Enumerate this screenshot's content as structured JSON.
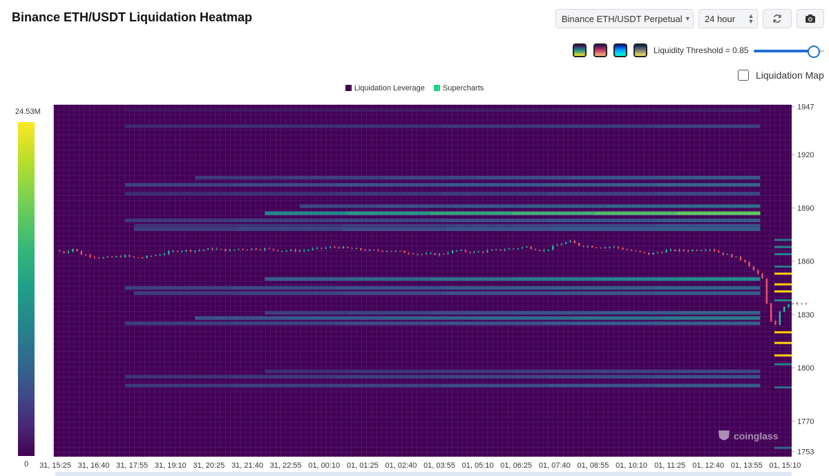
{
  "header": {
    "title": "Binance ETH/USDT Liquidation Heatmap",
    "pair_select": "Binance ETH/USDT Perpetual",
    "range_select": "24 hour",
    "refresh_icon": "refresh-icon",
    "camera_icon": "camera-icon"
  },
  "controls": {
    "palettes": [
      {
        "icon": "palette-viridis-icon",
        "from": "#440154",
        "mid": "#21918c",
        "to": "#fde725"
      },
      {
        "icon": "palette-magma-icon",
        "from": "#2c105c",
        "mid": "#c23a5f",
        "to": "#fcb97d"
      },
      {
        "icon": "palette-blue-icon",
        "from": "#0010a0",
        "mid": "#00a8ff",
        "to": "#00ffd0"
      },
      {
        "icon": "palette-cividis-icon",
        "from": "#00204c",
        "mid": "#7c7b78",
        "to": "#f2e35a"
      }
    ],
    "threshold_label": "Liquidity Threshold = 0.85",
    "threshold_value": 0.85,
    "liquidation_map_label": "Liquidation Map",
    "liquidation_map_checked": false
  },
  "legend": [
    {
      "label": "Liquidation Leverage",
      "color": "#440154"
    },
    {
      "label": "Supercharts",
      "color": "#1fd68b"
    }
  ],
  "colors": {
    "background": "#440154",
    "grid": "#53207a",
    "candle_up": "#1fc2a5",
    "candle_down": "#ef5366",
    "accent": "#1f6fd1",
    "marker": "#ffd400"
  },
  "colorbar": {
    "max_label": "24.53M",
    "min_label": "0"
  },
  "watermark": "coinglass",
  "chart_data": {
    "type": "heatmap",
    "x_tick_labels": [
      "31, 15:25",
      "31, 16:40",
      "31, 17:55",
      "31, 19:10",
      "31, 20:25",
      "31, 21:40",
      "31, 22:55",
      "01, 00:10",
      "01, 01:25",
      "01, 02:40",
      "01, 03:55",
      "01, 05:10",
      "01, 06:25",
      "01, 07:40",
      "01, 08:55",
      "01, 10:10",
      "01, 11:25",
      "01, 12:40",
      "01, 13:55",
      "01, 15:10"
    ],
    "y_ticks": [
      1947,
      1920,
      1890,
      1860,
      1830,
      1800,
      1770,
      1753
    ],
    "ylim": [
      1750,
      1948
    ],
    "price_points": [
      [
        0,
        1866
      ],
      [
        0.5,
        1865
      ],
      [
        1,
        1867
      ],
      [
        1.5,
        1864
      ],
      [
        2,
        1863
      ],
      [
        2.5,
        1862
      ],
      [
        3,
        1862
      ],
      [
        4,
        1863
      ],
      [
        4.5,
        1862
      ],
      [
        5,
        1862
      ],
      [
        6,
        1864
      ],
      [
        7,
        1866
      ],
      [
        8,
        1866
      ],
      [
        9,
        1867
      ],
      [
        10,
        1866
      ],
      [
        10.5,
        1867
      ],
      [
        11,
        1867
      ],
      [
        12,
        1867
      ],
      [
        13,
        1866
      ],
      [
        14,
        1866
      ],
      [
        15,
        1867
      ],
      [
        16,
        1868
      ],
      [
        17,
        1867
      ],
      [
        18,
        1866
      ],
      [
        19,
        1866
      ],
      [
        20,
        1865
      ],
      [
        21,
        1864
      ],
      [
        22,
        1864
      ],
      [
        23,
        1866
      ],
      [
        24,
        1865
      ],
      [
        25,
        1866
      ],
      [
        26,
        1867
      ],
      [
        27,
        1868
      ],
      [
        27.5,
        1867
      ],
      [
        28,
        1866
      ],
      [
        29,
        1870
      ],
      [
        29.5,
        1871
      ],
      [
        30,
        1869
      ],
      [
        31,
        1868
      ],
      [
        32,
        1868
      ],
      [
        33,
        1866
      ],
      [
        34,
        1864
      ],
      [
        35,
        1866
      ],
      [
        36,
        1866
      ],
      [
        37.5,
        1867
      ],
      [
        38,
        1865
      ],
      [
        39,
        1862
      ],
      [
        39.5,
        1860
      ],
      [
        40,
        1855
      ],
      [
        40.5,
        1850
      ],
      [
        40.8,
        1834
      ],
      [
        41,
        1826
      ],
      [
        41.2,
        1822
      ],
      [
        41.5,
        1832
      ],
      [
        42,
        1836
      ],
      [
        42.5,
        1836
      ],
      [
        43,
        1836
      ]
    ],
    "bands": [
      {
        "price": 1945,
        "start": 4.0,
        "intensity": 0.1
      },
      {
        "price": 1936,
        "start": 4.0,
        "intensity": 0.2
      },
      {
        "price": 1911,
        "start": 41.5,
        "intensity": 0.3
      },
      {
        "price": 1907,
        "start": 8.0,
        "intensity": 0.28
      },
      {
        "price": 1903,
        "start": 4.0,
        "intensity": 0.32
      },
      {
        "price": 1898,
        "start": 4.0,
        "intensity": 0.22
      },
      {
        "price": 1891,
        "start": 14.0,
        "intensity": 0.35
      },
      {
        "price": 1887,
        "start": 12.0,
        "intensity": 0.75
      },
      {
        "price": 1883,
        "start": 4.0,
        "intensity": 0.28
      },
      {
        "price": 1880,
        "start": 4.5,
        "intensity": 0.24
      },
      {
        "price": 1878,
        "start": 4.5,
        "intensity": 0.3
      },
      {
        "price": 1850,
        "start": 12.0,
        "intensity": 0.48
      },
      {
        "price": 1845,
        "start": 4.0,
        "intensity": 0.32
      },
      {
        "price": 1842,
        "start": 4.5,
        "intensity": 0.3
      },
      {
        "price": 1831,
        "start": 12.0,
        "intensity": 0.3
      },
      {
        "price": 1828,
        "start": 8.0,
        "intensity": 0.4
      },
      {
        "price": 1825,
        "start": 4.0,
        "intensity": 0.3
      },
      {
        "price": 1798,
        "start": 12.0,
        "intensity": 0.22
      },
      {
        "price": 1795,
        "start": 4.0,
        "intensity": 0.25
      },
      {
        "price": 1790,
        "start": 4.0,
        "intensity": 0.28
      }
    ],
    "recent_markers": [
      {
        "price": 1847,
        "intensity": 1.0
      },
      {
        "price": 1843,
        "intensity": 1.0
      },
      {
        "price": 1853,
        "intensity": 1.0
      },
      {
        "price": 1820,
        "intensity": 1.0
      },
      {
        "price": 1814,
        "intensity": 1.0
      },
      {
        "price": 1807,
        "intensity": 1.0
      },
      {
        "price": 1864,
        "intensity": 0.45
      },
      {
        "price": 1872,
        "intensity": 0.4
      },
      {
        "price": 1868,
        "intensity": 0.45
      },
      {
        "price": 1857,
        "intensity": 0.4
      },
      {
        "price": 1838,
        "intensity": 0.45
      },
      {
        "price": 1802,
        "intensity": 0.45
      },
      {
        "price": 1789,
        "intensity": 0.35
      },
      {
        "price": 1755,
        "intensity": 0.35
      }
    ]
  }
}
